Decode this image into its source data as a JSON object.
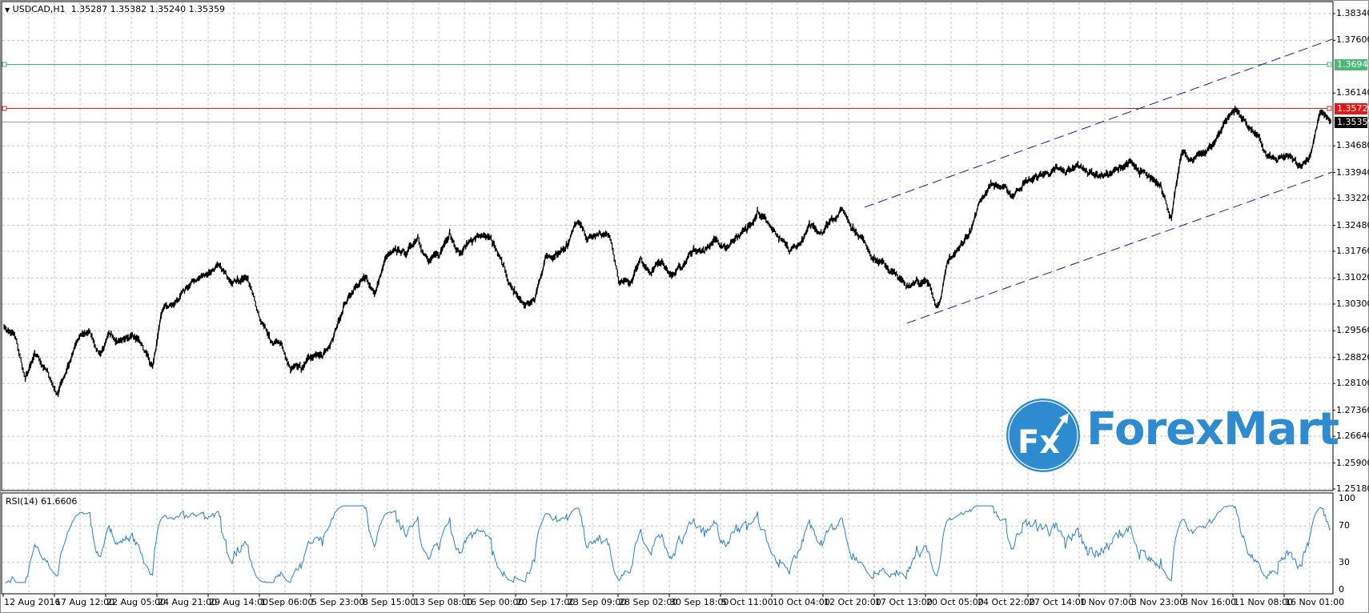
{
  "header": {
    "symbol_timeframe": "USDCAD,H1",
    "ohlc": "1.35287 1.35382 1.35240 1.35359",
    "menu_icon": "triangle-down-icon"
  },
  "rsi": {
    "label": "RSI(14) 61.6606",
    "levels": [
      "100",
      "70",
      "30",
      "0"
    ]
  },
  "logo": {
    "text": "ForexMart",
    "mark": "Fx"
  },
  "colors": {
    "price_line": "#000000",
    "rsi_line": "#2f7fc0",
    "grid": "#c4c4c4",
    "channel": "#1c1c8c",
    "resistance_line": "#3cb371",
    "support_line": "#d42020",
    "logo": "#2e8bd0"
  },
  "chart_data": {
    "type": "line",
    "symbol": "USDCAD",
    "timeframe": "H1",
    "ylim": [
      1.2518,
      1.3834
    ],
    "y_ticks": [
      "1.38340",
      "1.37600",
      "1.36140",
      "1.34680",
      "1.33940",
      "1.33220",
      "1.32480",
      "1.31760",
      "1.31020",
      "1.30300",
      "1.29560",
      "1.28820",
      "1.28100",
      "1.27360",
      "1.26640",
      "1.25900",
      "1.25180"
    ],
    "x_ticks": [
      "12 Aug 2016",
      "17 Aug 12:00",
      "22 Aug 05:00",
      "24 Aug 21:00",
      "29 Aug 14:00",
      "1 Sep 06:00",
      "5 Sep 23:00",
      "8 Sep 15:00",
      "13 Sep 08:00",
      "16 Sep 00:00",
      "20 Sep 17:00",
      "23 Sep 09:00",
      "28 Sep 02:00",
      "30 Sep 18:00",
      "5 Oct 11:00",
      "10 Oct 04:00",
      "12 Oct 20:00",
      "17 Oct 13:00",
      "20 Oct 05:00",
      "24 Oct 22:00",
      "27 Oct 14:00",
      "1 Nov 07:00",
      "3 Nov 23:00",
      "8 Nov 16:00",
      "11 Nov 08:00",
      "16 Nov 01:00"
    ],
    "grid": true,
    "close": [
      1.2967,
      1.2943,
      1.2822,
      1.2887,
      1.2846,
      1.2781,
      1.2858,
      1.2931,
      1.2955,
      1.2894,
      1.2943,
      1.2931,
      1.2943,
      1.2919,
      1.2858,
      1.3015,
      1.3027,
      1.3063,
      1.3095,
      1.3112,
      1.3136,
      1.3104,
      1.31,
      1.31,
      1.3003,
      1.2943,
      1.2919,
      1.2846,
      1.2846,
      1.2882,
      1.2882,
      1.2931,
      1.3027,
      1.3075,
      1.31,
      1.3063,
      1.316,
      1.3172,
      1.3172,
      1.322,
      1.3148,
      1.316,
      1.3232,
      1.3172,
      1.3208,
      1.322,
      1.3196,
      1.3136,
      1.3063,
      1.3027,
      1.3039,
      1.316,
      1.3172,
      1.3196,
      1.3256,
      1.3208,
      1.322,
      1.322,
      1.3087,
      1.3087,
      1.316,
      1.3112,
      1.3148,
      1.3112,
      1.3136,
      1.3184,
      1.3172,
      1.3208,
      1.3184,
      1.322,
      1.3232,
      1.3293,
      1.3256,
      1.3208,
      1.3172,
      1.3196,
      1.3244,
      1.3232,
      1.3268,
      1.3293,
      1.3244,
      1.3208,
      1.316,
      1.3136,
      1.3112,
      1.3075,
      1.31,
      1.3087,
      1.3027,
      1.3148,
      1.3184,
      1.3232,
      1.3317,
      1.3365,
      1.3353,
      1.3329,
      1.3365,
      1.3377,
      1.3389,
      1.3401,
      1.3389,
      1.3413,
      1.3401,
      1.3389,
      1.3389,
      1.3401,
      1.3425,
      1.3389,
      1.3377,
      1.3365,
      1.3268,
      1.3449,
      1.3425,
      1.3449,
      1.3474,
      1.3534,
      1.357,
      1.3534,
      1.3498,
      1.3437,
      1.3425,
      1.3437,
      1.3413,
      1.3437,
      1.3558,
      1.3536
    ],
    "horizontal_lines": [
      {
        "price": "1.36947",
        "color": "#3cb371",
        "label_bg": "#4cb878"
      },
      {
        "price": "1.35720",
        "color": "#d42020",
        "label_bg": "#e01818"
      }
    ],
    "current_price": {
      "price": "1.35359",
      "label_bg": "#000000"
    },
    "channel": {
      "upper": [
        1.3298,
        1.3763
      ],
      "lower": [
        1.2977,
        1.3395
      ]
    }
  }
}
